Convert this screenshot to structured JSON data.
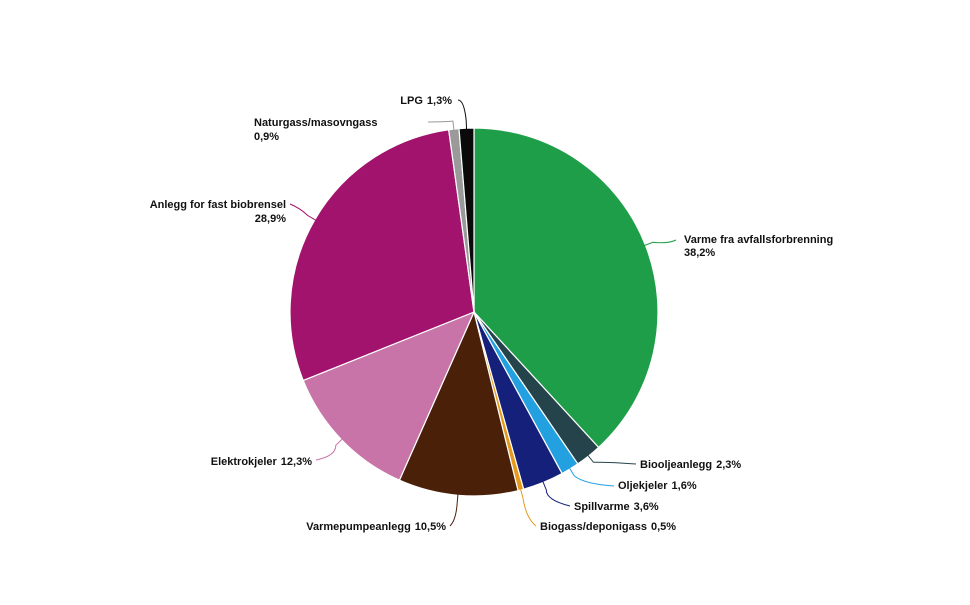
{
  "chart_data": {
    "type": "pie",
    "title": "",
    "slices": [
      {
        "label": "Varme fra avfallsforbrenning",
        "value": 38.2,
        "value_label": "38,2%",
        "color": "#1f9e4a"
      },
      {
        "label": "Biooljeanlegg",
        "value": 2.3,
        "value_label": "2,3%",
        "color": "#25434a"
      },
      {
        "label": "Oljekjeler",
        "value": 1.6,
        "value_label": "1,6%",
        "color": "#23a0e0"
      },
      {
        "label": "Spillvarme",
        "value": 3.6,
        "value_label": "3,6%",
        "color": "#14207a"
      },
      {
        "label": "Biogass/deponigass",
        "value": 0.5,
        "value_label": "0,5%",
        "color": "#e49a1a"
      },
      {
        "label": "Varmepumpeanlegg",
        "value": 10.5,
        "value_label": "10,5%",
        "color": "#4a2008"
      },
      {
        "label": "Elektrokjeler",
        "value": 12.3,
        "value_label": "12,3%",
        "color": "#c874a8"
      },
      {
        "label": "Anlegg for fast biobrensel",
        "value": 28.9,
        "value_label": "28,9%",
        "color": "#a1136c"
      },
      {
        "label": "Naturgass/masovngass",
        "value": 0.9,
        "value_label": "0,9%",
        "color": "#9a9a9a"
      },
      {
        "label": "LPG",
        "value": 1.3,
        "value_label": "1,3%",
        "color": "#0a0a0a"
      }
    ]
  }
}
